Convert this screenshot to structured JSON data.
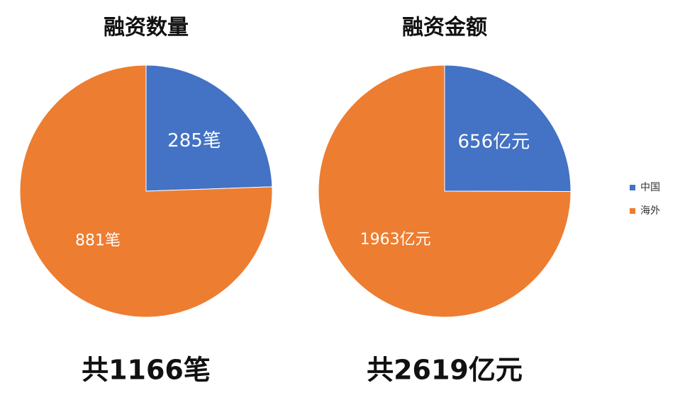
{
  "chart_data": [
    {
      "type": "pie",
      "title": "融资数量",
      "categories": [
        "中国",
        "海外"
      ],
      "values": [
        285,
        881
      ],
      "value_labels": [
        "285笔",
        "881笔"
      ],
      "colors": [
        "#4472c4",
        "#ed7d31"
      ],
      "annotation": "共1166笔"
    },
    {
      "type": "pie",
      "title": "融资金额",
      "categories": [
        "中国",
        "海外"
      ],
      "values": [
        656,
        1963
      ],
      "value_labels": [
        "656亿元",
        "1963亿元"
      ],
      "colors": [
        "#4472c4",
        "#ed7d31"
      ],
      "annotation": "共2619亿元"
    }
  ]
}
